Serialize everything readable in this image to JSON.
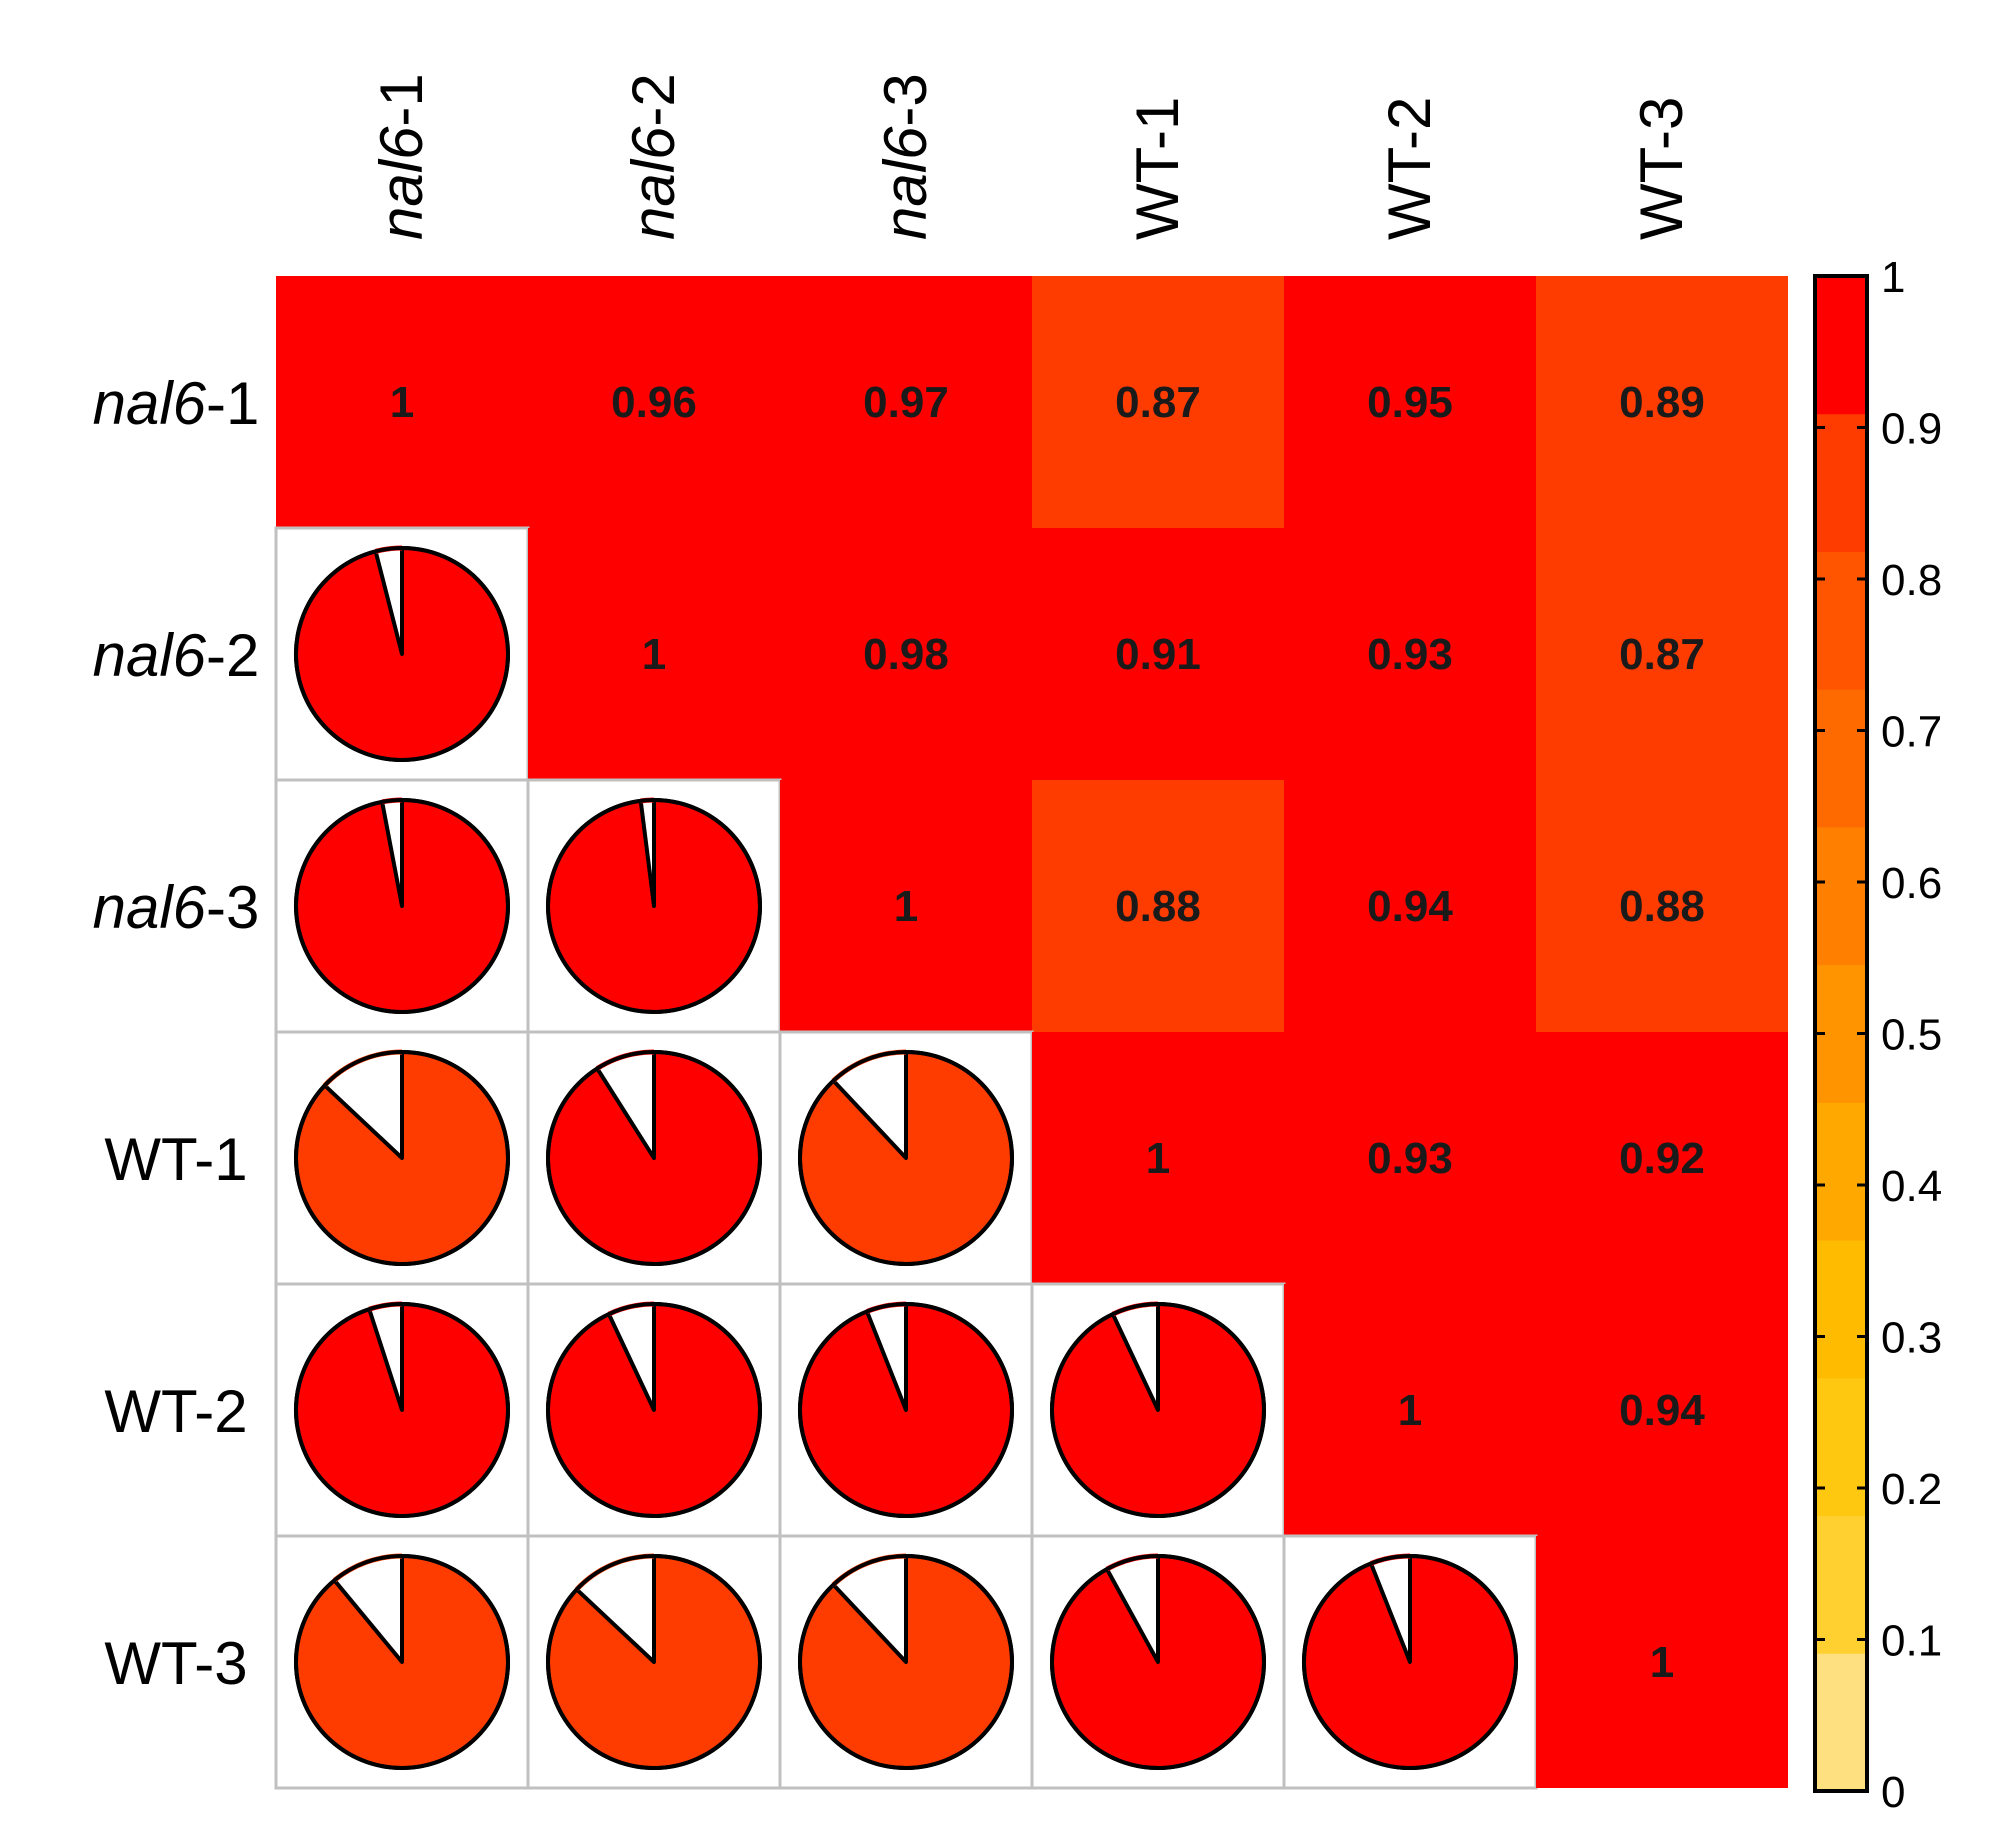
{
  "chart_data": {
    "type": "heatmap",
    "title": "",
    "xlabel": "",
    "ylabel": "",
    "labels": [
      {
        "prefix": "nal6",
        "suffix": "-1",
        "italic_prefix": true
      },
      {
        "prefix": "nal6",
        "suffix": "-2",
        "italic_prefix": true
      },
      {
        "prefix": "nal6",
        "suffix": "-3",
        "italic_prefix": true
      },
      {
        "prefix": "",
        "suffix": "WT-1",
        "italic_prefix": false
      },
      {
        "prefix": "",
        "suffix": "WT-2",
        "italic_prefix": false
      },
      {
        "prefix": "",
        "suffix": "WT-3",
        "italic_prefix": false
      }
    ],
    "matrix": [
      [
        1,
        0.96,
        0.97,
        0.87,
        0.95,
        0.89
      ],
      [
        0.96,
        1,
        0.98,
        0.91,
        0.93,
        0.87
      ],
      [
        0.97,
        0.98,
        1,
        0.88,
        0.94,
        0.88
      ],
      [
        0.87,
        0.91,
        0.88,
        1,
        0.93,
        0.92
      ],
      [
        0.95,
        0.93,
        0.94,
        0.93,
        1,
        0.94
      ],
      [
        0.89,
        0.87,
        0.88,
        0.92,
        0.94,
        1
      ]
    ],
    "value_labels": [
      [
        "1",
        "0.96",
        "0.97",
        "0.87",
        "0.95",
        "0.89"
      ],
      [
        "",
        "1",
        "0.98",
        "0.91",
        "0.93",
        "0.87"
      ],
      [
        "",
        "",
        "1",
        "0.88",
        "0.94",
        "0.88"
      ],
      [
        "",
        "",
        "",
        "1",
        "0.93",
        "0.92"
      ],
      [
        "",
        "",
        "",
        "",
        "1",
        "0.94"
      ],
      [
        "",
        "",
        "",
        "",
        "",
        "1"
      ]
    ],
    "upper_triangle": "numbers",
    "lower_triangle": "pies",
    "colorbar": {
      "range": [
        0,
        1
      ],
      "ticks": [
        "0",
        "0.1",
        "0.2",
        "0.3",
        "0.4",
        "0.5",
        "0.6",
        "0.7",
        "0.8",
        "0.9",
        "1"
      ],
      "bins": [
        "#ffe080",
        "#ffd030",
        "#ffc810",
        "#ffbb00",
        "#ffa800",
        "#ff9400",
        "#ff7f00",
        "#ff6a00",
        "#ff5500",
        "#ff3c00",
        "#ff0000"
      ]
    },
    "colors": {
      "cell_border": "#c0c0c0",
      "pie_outline": "#000000",
      "value_text": "#1a1a1a",
      "label_text": "#000000"
    }
  }
}
